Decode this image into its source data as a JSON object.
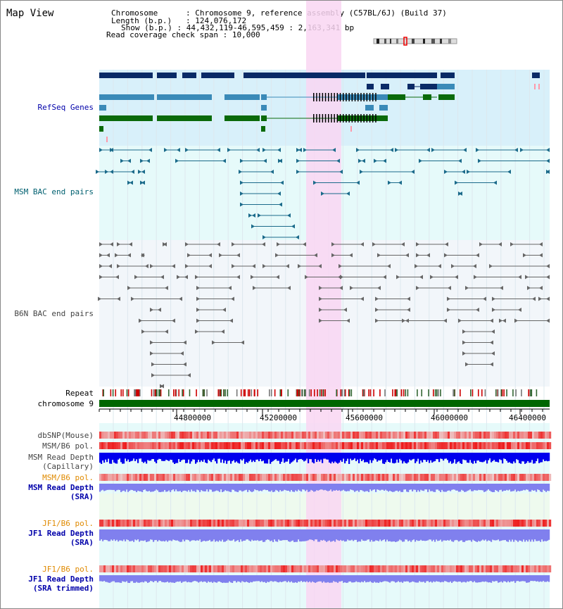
{
  "header": {
    "title": "Map View",
    "chromosome_label": "Chromosome",
    "chromosome_value": "Chromosome 9, reference assembly (C57BL/6J) (Build 37)",
    "length_label": "Length (b.p.)",
    "length_value": "124,076,172",
    "show_label": "Show (b.p.)",
    "show_value": "44,432,119-46,595,459 : 2,163,341 bp",
    "coverage_label": "Read coverage check span",
    "coverage_value": "10,000"
  },
  "tracks": {
    "refseq": "RefSeq Genes",
    "msm_bac": "MSM BAC end pairs",
    "b6n_bac": "B6N BAC end pairs",
    "repeat": "Repeat",
    "chromosome": "chromosome 9",
    "dbsnp": "dbSNP(Mouse)",
    "msm_b6_pol": "MSM/B6 pol.",
    "msm_depth_cap_1": "MSM Read Depth",
    "msm_depth_cap_2": "(Capillary)",
    "msm_b6_pol_sra": "MSM/B6 pol.",
    "msm_depth_sra_1": "MSM Read Depth",
    "msm_depth_sra_2": "(SRA)",
    "jf1_b6_pol": "JF1/B6 pol.",
    "jf1_depth_sra_1": "JF1 Read Depth",
    "jf1_depth_sra_2": "(SRA)",
    "jf1_b6_pol_trim": "JF1/B6 pol.",
    "jf1_depth_trim_1": "JF1 Read Depth",
    "jf1_depth_trim_2": "(SRA trimmed)"
  },
  "axis": {
    "ticks": [
      "44800000",
      "45200000",
      "45600000",
      "46000000",
      "46400000"
    ]
  },
  "colors": {
    "refseq_bg": "#d8f0fa",
    "msm_bg": "#e6fafa",
    "b6n_bg": "#f2f6fa",
    "highlight": "#f9d6f2",
    "navy_gene": "#0a2a66",
    "teal_gene": "#3a8ab8",
    "green_gene": "#0a6a0a",
    "chromosome_bar": "#006600",
    "depth_capillary": "#0000ee",
    "depth_sra": "#8080ee",
    "pol_red": "#ee2222"
  }
}
